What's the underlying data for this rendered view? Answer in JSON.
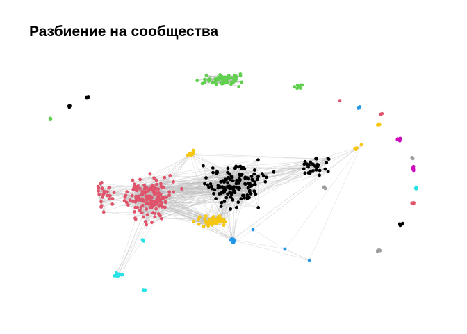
{
  "title": "Разбиение на сообщества",
  "edge_color": "#b8b8b8",
  "communities": [
    {
      "id": "black",
      "color": "#000000"
    },
    {
      "id": "red",
      "color": "#df536b"
    },
    {
      "id": "green",
      "color": "#61d04f"
    },
    {
      "id": "blue",
      "color": "#2297e6"
    },
    {
      "id": "cyan",
      "color": "#28e2e5"
    },
    {
      "id": "magenta",
      "color": "#cd0bbc"
    },
    {
      "id": "yellow",
      "color": "#f5c710"
    },
    {
      "id": "gray",
      "color": "#9e9e9e"
    }
  ]
}
